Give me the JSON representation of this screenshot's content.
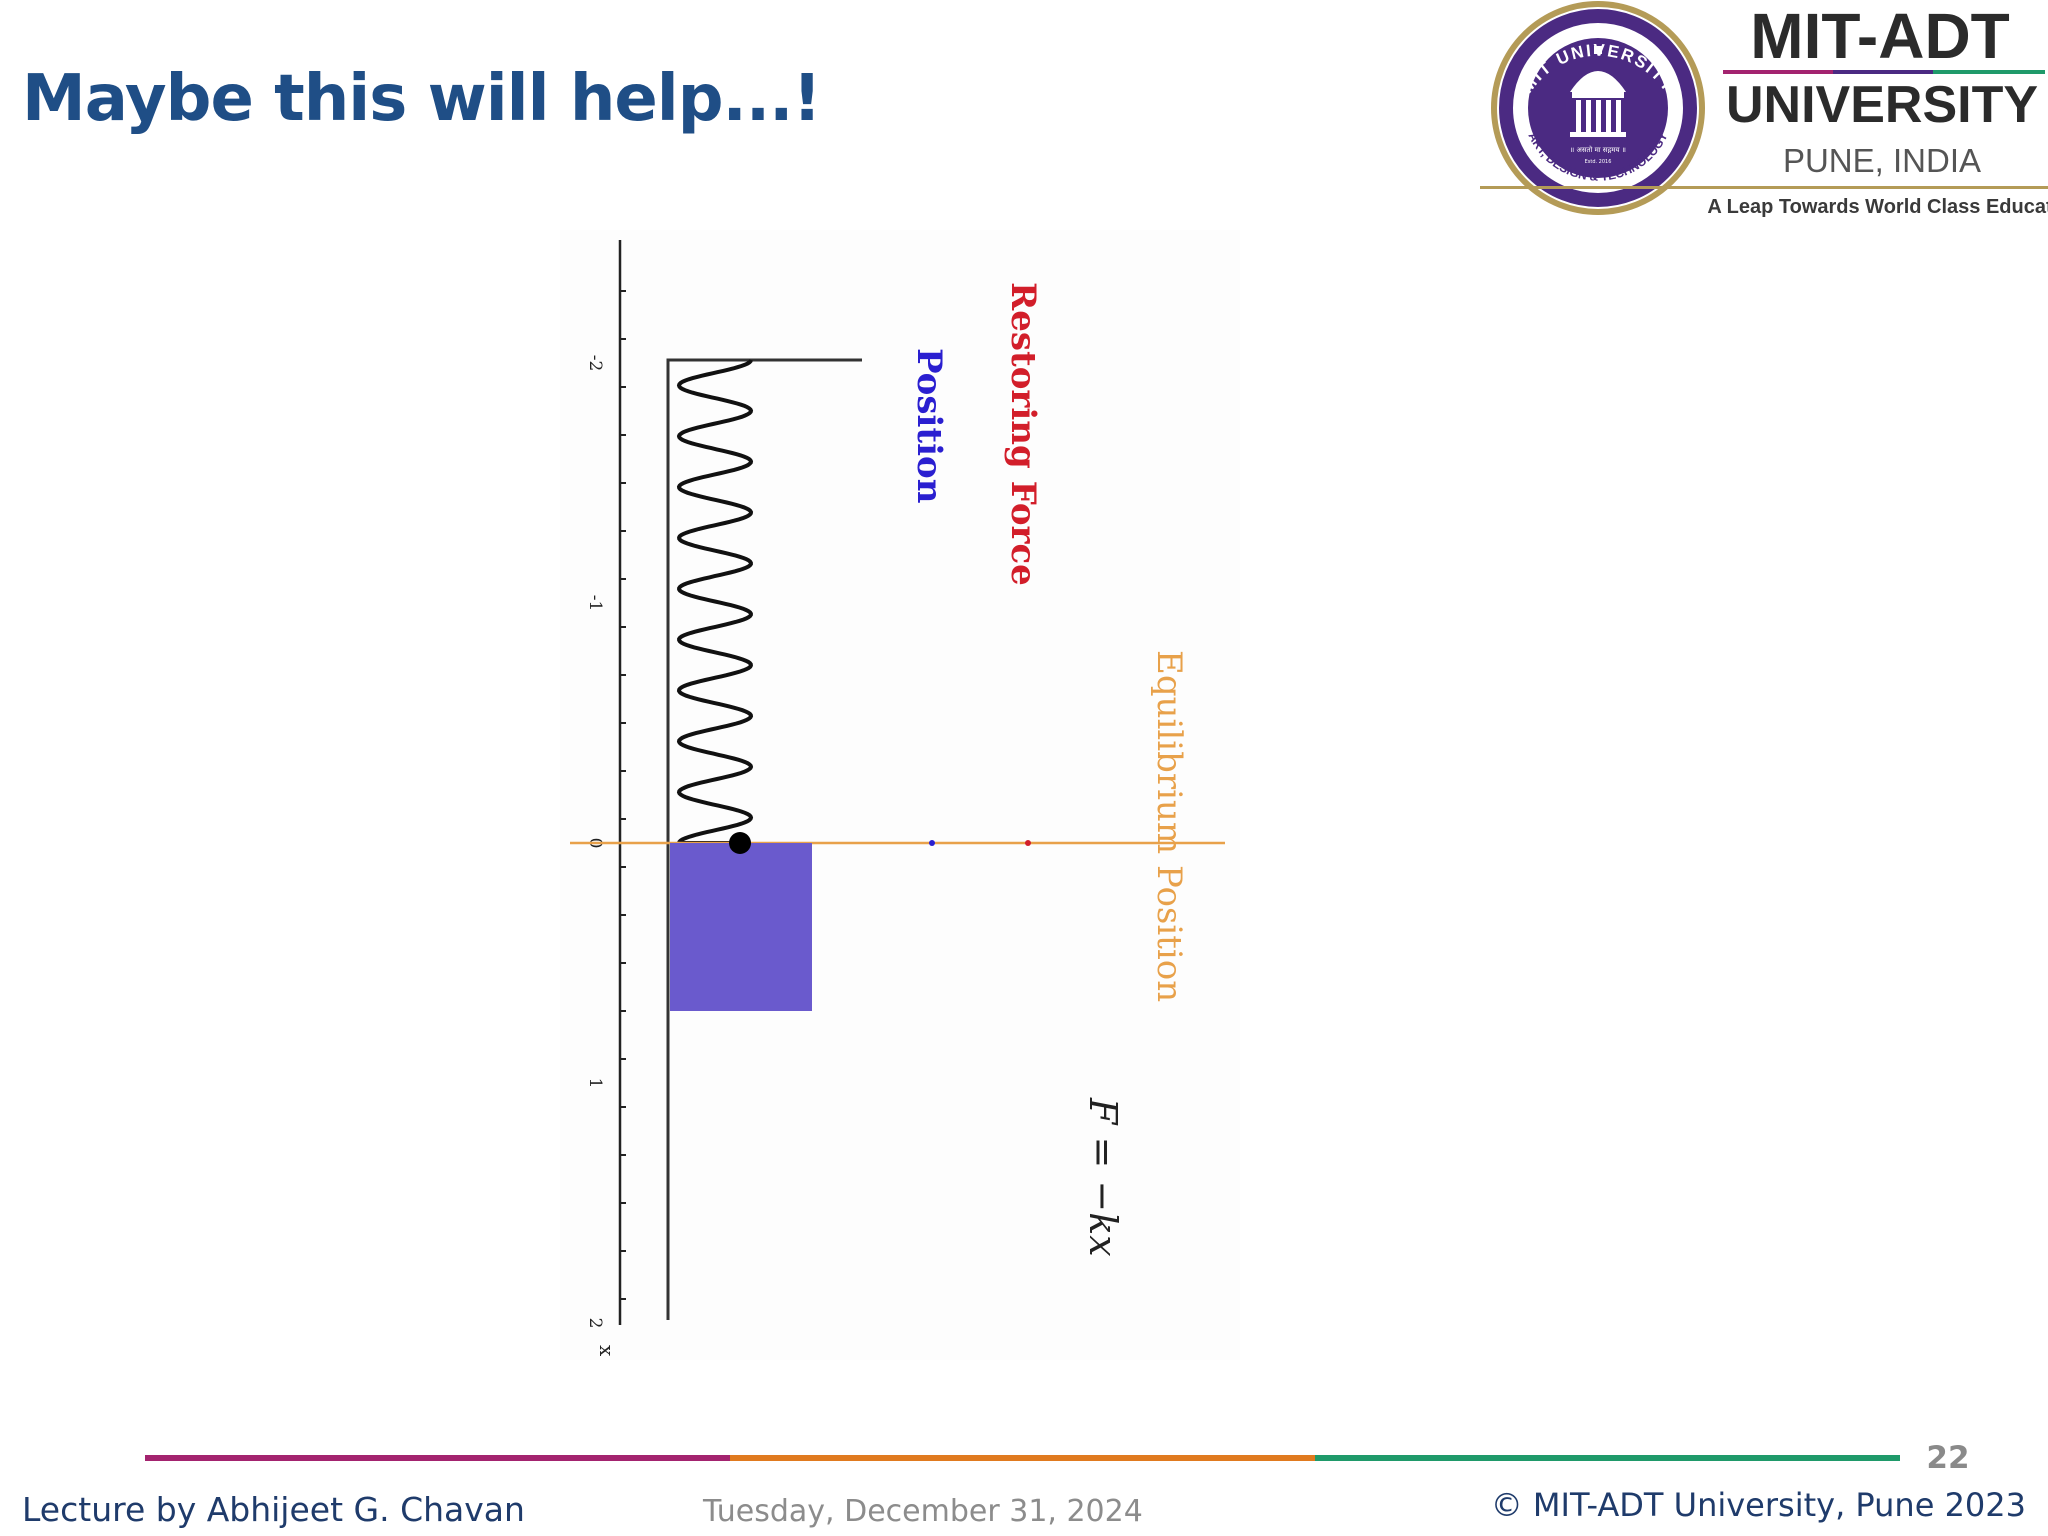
{
  "slide": {
    "title": "Maybe this will help...!",
    "page_number": "22"
  },
  "logo": {
    "name_line1": "MIT-ADT",
    "name_line2": "UNIVERSITY",
    "location": "PUNE, INDIA",
    "tagline": "A Leap Towards World Class Education",
    "seal_top": "MIT UNIVERSITY",
    "seal_bottom": "ART, DESIGN & TECHNOLOGY",
    "seal_motto": "॥ असतो मा सद्गमय ॥",
    "seal_est": "Estd. 2016",
    "colors": {
      "purple": "#4b2a82",
      "gold": "#b49b57",
      "dark": "#2b2b2b"
    }
  },
  "figure": {
    "axis_label": "x",
    "ticks": [
      "-2",
      "-1",
      "0",
      "1",
      "2"
    ],
    "labels": {
      "restoring_force": "Restoring Force",
      "position": "Position",
      "equilibrium": "Equilibrium Position",
      "formula": "F = −kx"
    },
    "colors": {
      "restoring_force": "#d21e2a",
      "position": "#2a1fd0",
      "equilibrium": "#e8a14a",
      "block": "#6a5acd"
    }
  },
  "footer": {
    "lecturer": "Lecture by Abhijeet G. Chavan",
    "date": "Tuesday, December 31, 2024",
    "copyright": "© MIT-ADT University, Pune 2023",
    "bar_colors": [
      "#a3236f",
      "#e07a1f",
      "#1f9a6a"
    ]
  }
}
